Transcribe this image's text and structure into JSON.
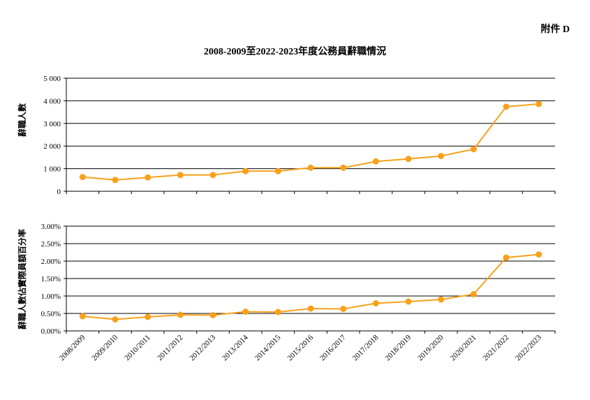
{
  "annex_label": "附件 D",
  "title": "2008-2009至2022-2023年度公務員辭職情況",
  "chart_data": [
    {
      "type": "line",
      "ylabel": "辭職人數",
      "ylim": [
        0,
        5000
      ],
      "yticks": [
        0,
        1000,
        2000,
        3000,
        4000,
        5000
      ],
      "ytick_labels": [
        "0",
        "1 000",
        "2 000",
        "3 000",
        "4 000",
        "5 000"
      ],
      "categories": [
        "2008/2009",
        "2009/2010",
        "2010/2011",
        "2011/2012",
        "2012/2013",
        "2013/2014",
        "2014/2015",
        "2015/2016",
        "2016/2017",
        "2017/2018",
        "2018/2019",
        "2019/2020",
        "2020/2021",
        "2021/2022",
        "2022/2023"
      ],
      "values": [
        630,
        500,
        610,
        720,
        720,
        890,
        890,
        1040,
        1040,
        1320,
        1430,
        1560,
        1860,
        3740,
        3860
      ],
      "color": "#f7a11a",
      "grid": true
    },
    {
      "type": "line",
      "ylabel": "辭職人數佔實際員額百分率",
      "ylim": [
        0,
        0.03
      ],
      "yticks": [
        0,
        0.005,
        0.01,
        0.015,
        0.02,
        0.025,
        0.03
      ],
      "ytick_labels": [
        "0.00%",
        "0.50%",
        "1.00%",
        "1.50%",
        "2.00%",
        "2.50%",
        "3.00%"
      ],
      "categories": [
        "2008/2009",
        "2009/2010",
        "2010/2011",
        "2011/2012",
        "2012/2013",
        "2013/2014",
        "2014/2015",
        "2015/2016",
        "2016/2017",
        "2017/2018",
        "2018/2019",
        "2019/2020",
        "2020/2021",
        "2021/2022",
        "2022/2023"
      ],
      "values": [
        0.0042,
        0.0033,
        0.004,
        0.0046,
        0.0045,
        0.0055,
        0.0054,
        0.0064,
        0.0063,
        0.0079,
        0.0084,
        0.009,
        0.0105,
        0.021,
        0.0219
      ],
      "color": "#f7a11a",
      "grid": true
    }
  ]
}
